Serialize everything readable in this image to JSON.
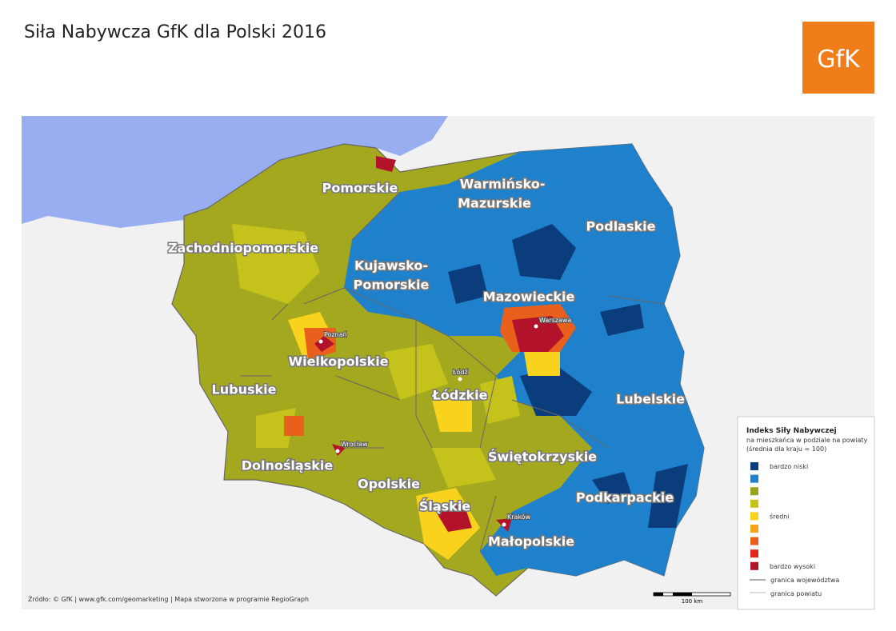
{
  "header": {
    "title": "Siła Nabywcza GfK dla Polski 2016",
    "logo": "GfK"
  },
  "map": {
    "regions": [
      [
        "Pomorskie"
      ],
      [
        "Warmińsko-",
        "Mazurskie"
      ],
      [
        "Podlaskie"
      ],
      [
        "Zachodniopomorskie"
      ],
      [
        "Kujawsko-",
        "Pomorskie"
      ],
      [
        "Mazowieckie"
      ],
      [
        "Wielkopolskie"
      ],
      [
        "Lubuskie"
      ],
      [
        "Łódzkie"
      ],
      [
        "Lubelskie"
      ],
      [
        "Dolnośląskie"
      ],
      [
        "Opolskie"
      ],
      [
        "Świętokrzyskie"
      ],
      [
        "Śląskie"
      ],
      [
        "Podkarpackie"
      ],
      [
        "Małopolskie"
      ]
    ],
    "cities": [
      "Poznań",
      "Warszawa",
      "Łódź",
      "Wrocław",
      "Kraków"
    ]
  },
  "legend": {
    "title": "Indeks Siły Nabywczej",
    "subtitle": [
      "na mieszkańca w podziale na powiaty",
      "(średnia dla kraju = 100)"
    ],
    "items": [
      {
        "color": "#0b3d7d",
        "label": "bardzo niski"
      },
      {
        "color": "#1f80cc"
      },
      {
        "color": "#98a41a"
      },
      {
        "color": "#c6c21c"
      },
      {
        "color": "#f8d21c",
        "label": "średni"
      },
      {
        "color": "#f5a31c"
      },
      {
        "color": "#e8601c"
      },
      {
        "color": "#e2261e"
      },
      {
        "color": "#b3122b",
        "label": "bardzo wysoki"
      }
    ],
    "lines": [
      "granica województwa",
      "granica powiatu"
    ]
  },
  "source": "Źródło: © GfK | www.gfk.com/geomarketing | Mapa stworzona w programie RegioGraph",
  "scale": "100 km"
}
